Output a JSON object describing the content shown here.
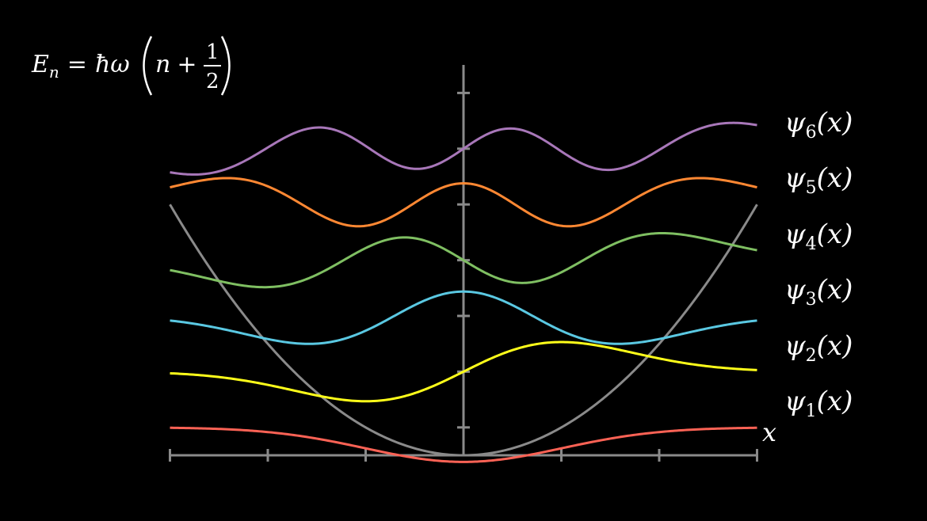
{
  "background": "#000000",
  "formula": {
    "E": "E",
    "n_sub": "n",
    "equals": "=",
    "hbar": "ħ",
    "omega": "ω",
    "n": "n",
    "plus": "+",
    "numerator": "1",
    "denominator": "2"
  },
  "axis": {
    "x_label": "x",
    "color": "#8a8a8a"
  },
  "potential": {
    "color": "#8a8a8a"
  },
  "wavefunctions": [
    {
      "symbol": "ψ",
      "index": "6",
      "arg": "(x)",
      "color": "#a877b9"
    },
    {
      "symbol": "ψ",
      "index": "5",
      "arg": "(x)",
      "color": "#ff8833"
    },
    {
      "symbol": "ψ",
      "index": "4",
      "arg": "(x)",
      "color": "#7fbf62"
    },
    {
      "symbol": "ψ",
      "index": "3",
      "arg": "(x)",
      "color": "#5ac8e2"
    },
    {
      "symbol": "ψ",
      "index": "2",
      "arg": "(x)",
      "color": "#ffff1a"
    },
    {
      "symbol": "ψ",
      "index": "1",
      "arg": "(x)",
      "color": "#fc6255"
    }
  ]
}
